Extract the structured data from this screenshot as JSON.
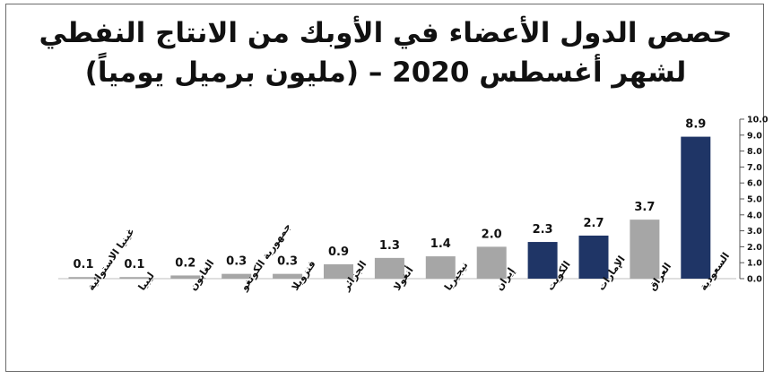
{
  "chart_data": {
    "type": "bar",
    "title_lines": [
      "حصص الدول الأعضاء في الأوبك من الانتاج النفطي",
      "لشهر أغسطس 2020 – (مليون برميل يومياً)"
    ],
    "categories": [
      "غينيا الاستوائية",
      "ليبيا",
      "الغابون",
      "جمهورية الكونغو",
      "فنزويلا",
      "الجزائر",
      "أنغولا",
      "نيجيريا",
      "إيران",
      "الكويت",
      "الإمارات",
      "العراق",
      "السعودية"
    ],
    "values": [
      0.1,
      0.1,
      0.2,
      0.3,
      0.3,
      0.9,
      1.3,
      1.4,
      2.0,
      2.3,
      2.7,
      3.7,
      8.9
    ],
    "value_labels": [
      "0.1",
      "0.1",
      "0.2",
      "0.3",
      "0.3",
      "0.9",
      "1.3",
      "1.4",
      "2.0",
      "2.3",
      "2.7",
      "3.7",
      "8.9"
    ],
    "bar_colors": [
      "#a6a6a6",
      "#a6a6a6",
      "#a6a6a6",
      "#a6a6a6",
      "#a6a6a6",
      "#a6a6a6",
      "#a6a6a6",
      "#a6a6a6",
      "#a6a6a6",
      "#1f3566",
      "#1f3566",
      "#a6a6a6",
      "#1f3566"
    ],
    "ylim": [
      0,
      10
    ],
    "yticks": [
      "0.0",
      "1.0",
      "2.0",
      "3.0",
      "4.0",
      "5.0",
      "6.0",
      "7.0",
      "8.0",
      "9.0",
      "10.0"
    ],
    "y_axis_side": "right",
    "grid": false,
    "legend": "none"
  }
}
